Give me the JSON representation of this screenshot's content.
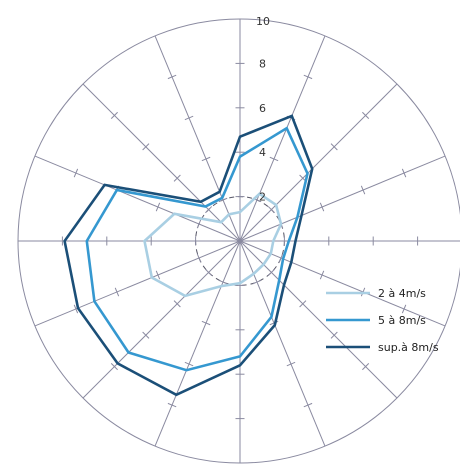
{
  "chart_data": {
    "type": "radar",
    "title": "",
    "directions": 16,
    "rlim": [
      0,
      10
    ],
    "radial_ticks": [
      "2",
      "4",
      "6",
      "8",
      "10"
    ],
    "radial_tick_values": [
      2,
      4,
      6,
      8,
      10
    ],
    "dashed_ring_value": 2,
    "grid": true,
    "legend_position": "bottom-right",
    "series": [
      {
        "name": "2 à 4m/s",
        "color": "#a9cfe3",
        "values": [
          1.3,
          2.3,
          2.3,
          2.0,
          1.5,
          1.5,
          1.5,
          1.6,
          1.9,
          2.2,
          3.5,
          4.3,
          4.3,
          3.2,
          1.2,
          1.3
        ]
      },
      {
        "name": "5 à 8m/s",
        "color": "#3598d0",
        "values": [
          3.8,
          5.5,
          4.3,
          2.8,
          2.2,
          2.1,
          2.5,
          3.7,
          5.2,
          6.3,
          7.1,
          7.1,
          6.9,
          6.0,
          2.2,
          2.1
        ]
      },
      {
        "name": "sup.à 8m/s",
        "color": "#1b4f78",
        "values": [
          4.7,
          6.1,
          4.6,
          3.0,
          2.5,
          2.5,
          2.8,
          4.1,
          5.6,
          7.5,
          7.8,
          7.9,
          7.9,
          6.6,
          2.5,
          2.4
        ]
      }
    ]
  }
}
